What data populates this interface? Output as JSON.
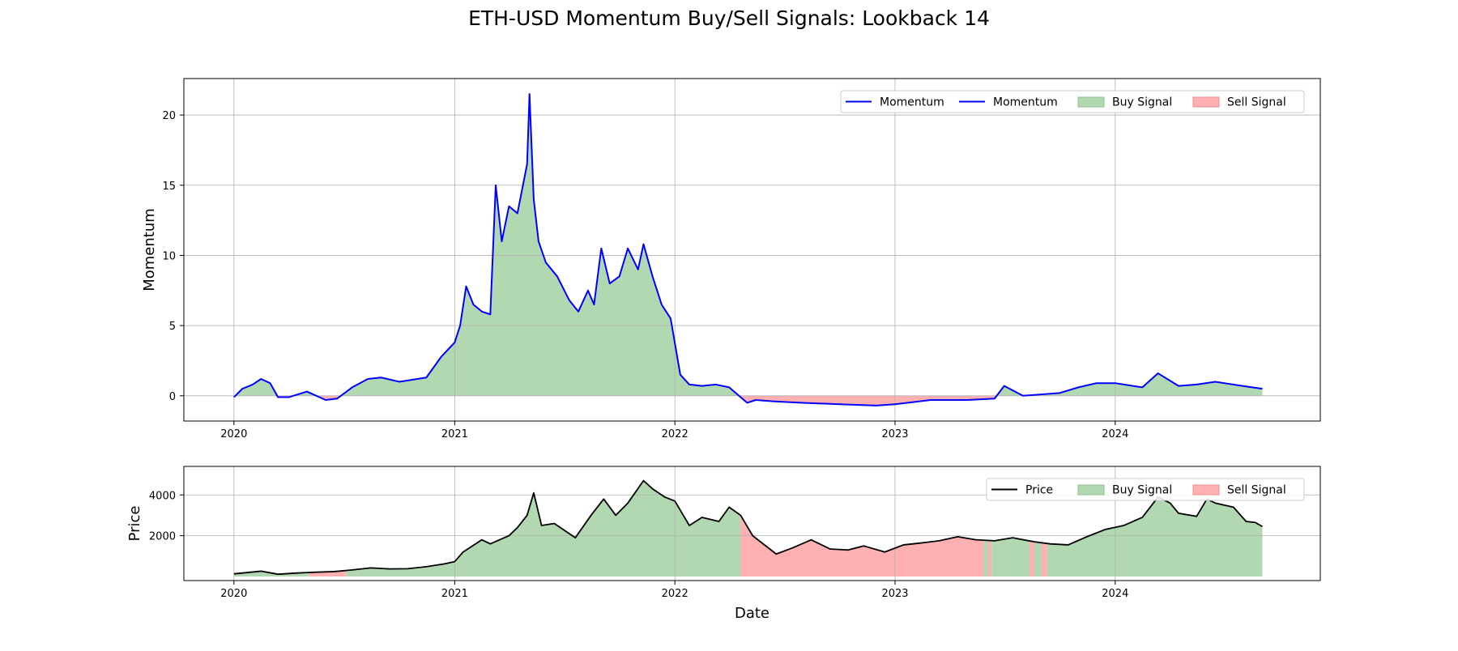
{
  "figure": {
    "title": "ETH-USD Momentum Buy/Sell Signals: Lookback 14"
  },
  "colors": {
    "momentum_line": "#0000ff",
    "price_line": "#000000",
    "buy_fill": "#b2d8b2",
    "sell_fill": "#ffb0b0",
    "grid": "#b0b0b0"
  },
  "chart_data": [
    {
      "type": "area",
      "title": "",
      "xlabel": "",
      "ylabel": "Momentum",
      "xlim": [
        "2019-10-10",
        "2024-12-06"
      ],
      "ylim": [
        -1.8,
        22.6
      ],
      "xticks": [
        "2020",
        "2021",
        "2022",
        "2023",
        "2024"
      ],
      "xtick_dates": [
        "2020-01-01",
        "2021-01-01",
        "2022-01-01",
        "2023-01-01",
        "2024-01-01"
      ],
      "yticks": [
        0,
        5,
        10,
        15,
        20
      ],
      "grid": true,
      "legend": {
        "placement": "top-right",
        "entries": [
          "Momentum",
          "Momentum",
          "Buy Signal",
          "Sell Signal"
        ]
      },
      "series": [
        {
          "name": "Momentum",
          "dates": [
            "2020-01-01",
            "2020-01-15",
            "2020-02-01",
            "2020-02-15",
            "2020-03-01",
            "2020-03-14",
            "2020-04-01",
            "2020-05-01",
            "2020-06-01",
            "2020-06-20",
            "2020-07-15",
            "2020-08-10",
            "2020-09-01",
            "2020-10-01",
            "2020-11-15",
            "2020-12-10",
            "2021-01-01",
            "2021-01-10",
            "2021-01-20",
            "2021-02-01",
            "2021-02-15",
            "2021-03-01",
            "2021-03-10",
            "2021-03-20",
            "2021-04-01",
            "2021-04-15",
            "2021-05-01",
            "2021-05-05",
            "2021-05-12",
            "2021-05-20",
            "2021-06-01",
            "2021-06-20",
            "2021-07-10",
            "2021-07-25",
            "2021-08-10",
            "2021-08-20",
            "2021-09-01",
            "2021-09-15",
            "2021-10-01",
            "2021-10-15",
            "2021-11-01",
            "2021-11-10",
            "2021-11-25",
            "2021-12-10",
            "2021-12-25",
            "2022-01-10",
            "2022-01-25",
            "2022-02-15",
            "2022-03-10",
            "2022-04-01",
            "2022-05-01",
            "2022-05-15",
            "2022-06-15",
            "2022-08-01",
            "2022-10-01",
            "2022-12-01",
            "2023-01-01",
            "2023-03-01",
            "2023-05-01",
            "2023-06-15",
            "2023-07-01",
            "2023-08-01",
            "2023-09-01",
            "2023-10-01",
            "2023-11-01",
            "2023-12-01",
            "2024-01-01",
            "2024-02-15",
            "2024-03-12",
            "2024-04-15",
            "2024-05-15",
            "2024-06-15",
            "2024-07-15",
            "2024-08-15",
            "2024-09-01"
          ],
          "values": [
            -0.1,
            0.5,
            0.8,
            1.2,
            0.9,
            -0.1,
            -0.1,
            0.3,
            -0.3,
            -0.2,
            0.6,
            1.2,
            1.3,
            1.0,
            1.3,
            2.8,
            3.8,
            5.0,
            7.8,
            6.5,
            6.0,
            5.8,
            15.0,
            11.0,
            13.5,
            13.0,
            16.5,
            21.5,
            14.0,
            11.0,
            9.5,
            8.5,
            6.8,
            6.0,
            7.5,
            6.5,
            10.5,
            8.0,
            8.5,
            10.5,
            9.0,
            10.8,
            8.5,
            6.5,
            5.5,
            1.5,
            0.8,
            0.7,
            0.8,
            0.6,
            -0.5,
            -0.3,
            -0.4,
            -0.5,
            -0.6,
            -0.7,
            -0.6,
            -0.3,
            -0.3,
            -0.2,
            0.7,
            0.0,
            0.1,
            0.2,
            0.6,
            0.9,
            0.9,
            0.6,
            1.6,
            0.7,
            0.8,
            1.0,
            0.8,
            0.6,
            0.5
          ]
        }
      ]
    },
    {
      "type": "area",
      "title": "",
      "xlabel": "Date",
      "ylabel": "Price",
      "xlim": [
        "2019-10-10",
        "2024-12-06"
      ],
      "ylim": [
        -200,
        5400
      ],
      "xticks": [
        "2020",
        "2021",
        "2022",
        "2023",
        "2024"
      ],
      "xtick_dates": [
        "2020-01-01",
        "2021-01-01",
        "2022-01-01",
        "2023-01-01",
        "2024-01-01"
      ],
      "yticks": [
        2000,
        4000
      ],
      "grid": true,
      "legend": {
        "placement": "top-right",
        "entries": [
          "Price",
          "Buy Signal",
          "Sell Signal"
        ]
      },
      "series": [
        {
          "name": "Price",
          "dates": [
            "2020-01-01",
            "2020-02-15",
            "2020-03-14",
            "2020-04-15",
            "2020-05-15",
            "2020-06-15",
            "2020-07-15",
            "2020-08-15",
            "2020-09-15",
            "2020-10-15",
            "2020-11-15",
            "2020-12-15",
            "2021-01-01",
            "2021-01-15",
            "2021-02-15",
            "2021-03-01",
            "2021-04-01",
            "2021-04-15",
            "2021-05-01",
            "2021-05-12",
            "2021-05-25",
            "2021-06-15",
            "2021-07-20",
            "2021-08-15",
            "2021-09-05",
            "2021-09-25",
            "2021-10-15",
            "2021-11-10",
            "2021-11-25",
            "2021-12-15",
            "2022-01-01",
            "2022-01-25",
            "2022-02-15",
            "2022-03-15",
            "2022-04-01",
            "2022-04-20",
            "2022-05-10",
            "2022-06-18",
            "2022-07-15",
            "2022-08-15",
            "2022-09-15",
            "2022-10-15",
            "2022-11-10",
            "2022-12-15",
            "2023-01-15",
            "2023-02-15",
            "2023-03-15",
            "2023-04-15",
            "2023-05-15",
            "2023-06-15",
            "2023-07-15",
            "2023-08-20",
            "2023-09-15",
            "2023-10-15",
            "2023-11-15",
            "2023-12-15",
            "2024-01-15",
            "2024-02-15",
            "2024-03-12",
            "2024-04-01",
            "2024-04-15",
            "2024-05-15",
            "2024-06-01",
            "2024-06-15",
            "2024-07-15",
            "2024-08-05",
            "2024-08-20",
            "2024-09-01"
          ],
          "values": [
            130,
            260,
            110,
            170,
            210,
            240,
            320,
            420,
            370,
            380,
            480,
            620,
            730,
            1200,
            1800,
            1600,
            2000,
            2400,
            3000,
            4100,
            2500,
            2600,
            1900,
            3000,
            3800,
            3000,
            3600,
            4700,
            4300,
            3900,
            3700,
            2500,
            2900,
            2700,
            3400,
            3000,
            2000,
            1100,
            1400,
            1800,
            1350,
            1300,
            1500,
            1200,
            1550,
            1650,
            1750,
            1950,
            1800,
            1750,
            1900,
            1700,
            1600,
            1550,
            1950,
            2300,
            2500,
            2900,
            3900,
            3600,
            3100,
            2950,
            3800,
            3600,
            3400,
            2700,
            2650,
            2450
          ]
        }
      ],
      "signals": [
        {
          "start": "2020-01-01",
          "end": "2020-05-05",
          "type": "Buy Signal"
        },
        {
          "start": "2020-05-05",
          "end": "2020-07-05",
          "type": "Sell Signal"
        },
        {
          "start": "2020-07-05",
          "end": "2022-04-20",
          "type": "Buy Signal"
        },
        {
          "start": "2022-04-20",
          "end": "2023-05-28",
          "type": "Sell Signal"
        },
        {
          "start": "2023-05-28",
          "end": "2023-06-05",
          "type": "Buy Signal"
        },
        {
          "start": "2023-06-05",
          "end": "2023-06-10",
          "type": "Sell Signal"
        },
        {
          "start": "2023-06-10",
          "end": "2023-08-12",
          "type": "Buy Signal"
        },
        {
          "start": "2023-08-12",
          "end": "2023-08-20",
          "type": "Sell Signal"
        },
        {
          "start": "2023-08-20",
          "end": "2023-09-01",
          "type": "Buy Signal"
        },
        {
          "start": "2023-09-01",
          "end": "2023-09-10",
          "type": "Sell Signal"
        },
        {
          "start": "2023-09-10",
          "end": "2024-09-01",
          "type": "Buy Signal"
        }
      ]
    }
  ]
}
